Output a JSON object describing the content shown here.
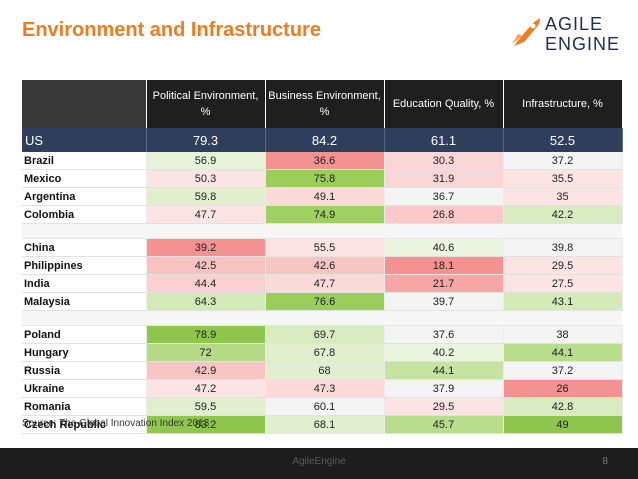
{
  "title": "Environment and Infrastructure",
  "logo": {
    "line1": "AGILE",
    "line2": "ENGINE"
  },
  "headers": [
    "",
    "Political Environment, %",
    "Business Environment, %",
    "Education Quality, %",
    "Infrastructure, %"
  ],
  "us": {
    "name": "US",
    "values": [
      "79.3",
      "84.2",
      "61.1",
      "52.5"
    ]
  },
  "groups": [
    [
      {
        "name": "Brazil",
        "values": [
          "56.9",
          "36.6",
          "30.3",
          "37.2"
        ],
        "colors": [
          "#e7f3d8",
          "#f49292",
          "#fbd6d6",
          "#f4f4f4"
        ]
      },
      {
        "name": "Mexico",
        "values": [
          "50.3",
          "75.8",
          "31.9",
          "35.5"
        ],
        "colors": [
          "#fde4e4",
          "#9acd5a",
          "#fbd6d6",
          "#fde4e4"
        ]
      },
      {
        "name": "Argentina",
        "values": [
          "59.8",
          "49.1",
          "36.7",
          "35"
        ],
        "colors": [
          "#e1efcf",
          "#fcdada",
          "#f4f4f4",
          "#fde4e4"
        ]
      },
      {
        "name": "Colombia",
        "values": [
          "47.7",
          "74.9",
          "26.8",
          "42.2"
        ],
        "colors": [
          "#fde4e4",
          "#9fd062",
          "#fbc9c9",
          "#d8ecbf"
        ]
      }
    ],
    [
      {
        "name": "China",
        "values": [
          "39.2",
          "55.5",
          "40.6",
          "39.8"
        ],
        "colors": [
          "#f49292",
          "#fde4e4",
          "#eaf4df",
          "#f4f4f4"
        ]
      },
      {
        "name": "Philippines",
        "values": [
          "42.5",
          "42.6",
          "18.1",
          "29.5"
        ],
        "colors": [
          "#f9c2c2",
          "#f9c4c4",
          "#f49292",
          "#fde4e4"
        ]
      },
      {
        "name": "India",
        "values": [
          "44.4",
          "47.7",
          "21.7",
          "27.5"
        ],
        "colors": [
          "#fbd0d0",
          "#fcdada",
          "#f6a6a6",
          "#fde4e4"
        ]
      },
      {
        "name": "Malaysia",
        "values": [
          "64.3",
          "76.6",
          "39.7",
          "43.1"
        ],
        "colors": [
          "#d3e9b7",
          "#9acd5a",
          "#f4f4f4",
          "#d4eab8"
        ]
      }
    ],
    [
      {
        "name": "Poland",
        "values": [
          "78.9",
          "69.7",
          "37.6",
          "38"
        ],
        "colors": [
          "#8fc74e",
          "#d8ecbf",
          "#f4f4f4",
          "#f4f4f4"
        ]
      },
      {
        "name": "Hungary",
        "values": [
          "72",
          "67.8",
          "40.2",
          "44.1"
        ],
        "colors": [
          "#b5db88",
          "#e1efcf",
          "#eaf4df",
          "#b8dd8c"
        ]
      },
      {
        "name": "Russia",
        "values": [
          "42.9",
          "68",
          "44.1",
          "37.2"
        ],
        "colors": [
          "#f9c4c4",
          "#e1efcf",
          "#c6e3a2",
          "#f4f4f4"
        ]
      },
      {
        "name": "Ukraine",
        "values": [
          "47.2",
          "47.3",
          "37.9",
          "26"
        ],
        "colors": [
          "#fde4e4",
          "#fcdada",
          "#f4f4f4",
          "#f49292"
        ]
      },
      {
        "name": "Romania",
        "values": [
          "59.5",
          "60.1",
          "29.5",
          "42.8"
        ],
        "colors": [
          "#e1efcf",
          "#f4f4f4",
          "#fde4e4",
          "#d8ecbf"
        ]
      },
      {
        "name": "Czech Republic",
        "values": [
          "83.2",
          "68.1",
          "45.7",
          "49"
        ],
        "colors": [
          "#8fc74e",
          "#e1efcf",
          "#b8dd8c",
          "#8fc74e"
        ]
      }
    ]
  ],
  "source": "Source: The Global Innovation Index 2013",
  "footer": {
    "center": "AgileEngine",
    "page": "8"
  }
}
